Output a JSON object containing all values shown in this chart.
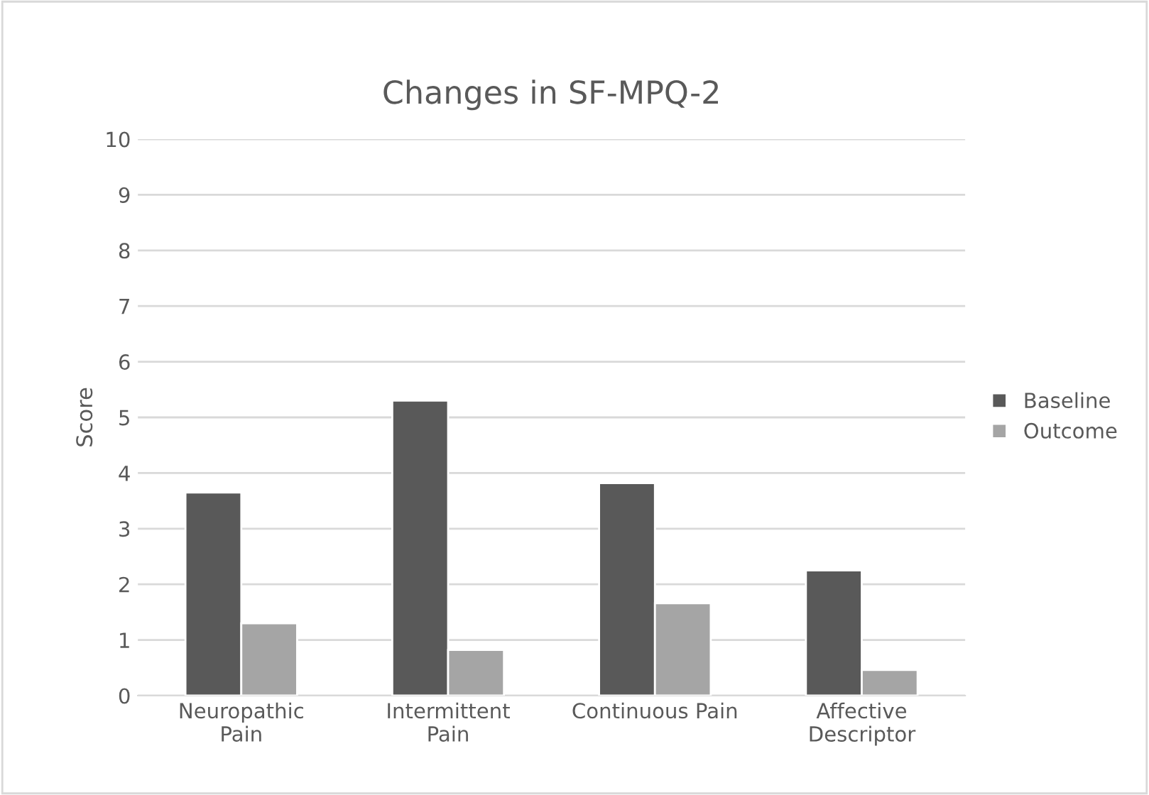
{
  "chart_data": {
    "type": "bar",
    "title": "Changes in SF-MPQ-2",
    "ylabel": "Score",
    "categories": [
      "Neuropathic\nPain",
      "Intermittent\nPain",
      "Continuous Pain",
      "Affective\nDescriptor"
    ],
    "series": [
      {
        "name": "Baseline",
        "color": "#595959",
        "values": [
          3.65,
          5.3,
          3.82,
          2.25
        ]
      },
      {
        "name": "Outcome",
        "color": "#a5a5a5",
        "values": [
          1.3,
          0.82,
          1.66,
          0.46
        ]
      }
    ],
    "ylim": [
      0,
      10
    ],
    "yticks": [
      0,
      1,
      2,
      3,
      4,
      5,
      6,
      7,
      8,
      9,
      10
    ],
    "grid": "y",
    "legend": "right"
  }
}
